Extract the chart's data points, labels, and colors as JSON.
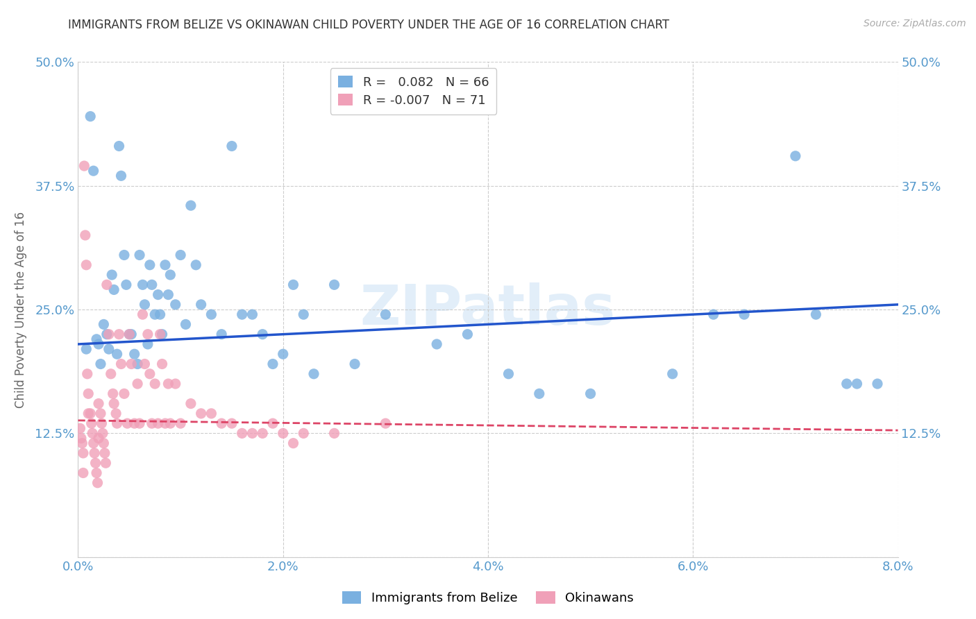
{
  "title": "IMMIGRANTS FROM BELIZE VS OKINAWAN CHILD POVERTY UNDER THE AGE OF 16 CORRELATION CHART",
  "source": "Source: ZipAtlas.com",
  "ylabel": "Child Poverty Under the Age of 16",
  "xlim": [
    0.0,
    0.08
  ],
  "ylim": [
    0.0,
    0.5
  ],
  "blue_R": 0.082,
  "blue_N": 66,
  "pink_R": -0.007,
  "pink_N": 71,
  "blue_color": "#7ab0e0",
  "pink_color": "#f0a0b8",
  "blue_line_color": "#2255cc",
  "pink_line_color": "#dd4466",
  "grid_color": "#cccccc",
  "background_color": "#ffffff",
  "title_color": "#333333",
  "tick_label_color": "#5599cc",
  "legend_label_blue": "Immigrants from Belize",
  "legend_label_pink": "Okinawans",
  "blue_scatter_x": [
    0.0008,
    0.0012,
    0.0015,
    0.0018,
    0.002,
    0.0022,
    0.0025,
    0.0028,
    0.003,
    0.0033,
    0.0035,
    0.0038,
    0.004,
    0.0042,
    0.0045,
    0.0047,
    0.005,
    0.0052,
    0.0055,
    0.0058,
    0.006,
    0.0063,
    0.0065,
    0.0068,
    0.007,
    0.0072,
    0.0075,
    0.0078,
    0.008,
    0.0082,
    0.0085,
    0.0088,
    0.009,
    0.0095,
    0.01,
    0.0105,
    0.011,
    0.0115,
    0.012,
    0.013,
    0.014,
    0.015,
    0.016,
    0.017,
    0.018,
    0.019,
    0.02,
    0.021,
    0.022,
    0.023,
    0.025,
    0.027,
    0.03,
    0.035,
    0.038,
    0.042,
    0.045,
    0.05,
    0.058,
    0.062,
    0.065,
    0.07,
    0.072,
    0.075,
    0.076,
    0.078
  ],
  "blue_scatter_y": [
    0.21,
    0.445,
    0.39,
    0.22,
    0.215,
    0.195,
    0.235,
    0.225,
    0.21,
    0.285,
    0.27,
    0.205,
    0.415,
    0.385,
    0.305,
    0.275,
    0.225,
    0.225,
    0.205,
    0.195,
    0.305,
    0.275,
    0.255,
    0.215,
    0.295,
    0.275,
    0.245,
    0.265,
    0.245,
    0.225,
    0.295,
    0.265,
    0.285,
    0.255,
    0.305,
    0.235,
    0.355,
    0.295,
    0.255,
    0.245,
    0.225,
    0.415,
    0.245,
    0.245,
    0.225,
    0.195,
    0.205,
    0.275,
    0.245,
    0.185,
    0.275,
    0.195,
    0.245,
    0.215,
    0.225,
    0.185,
    0.165,
    0.165,
    0.185,
    0.245,
    0.245,
    0.405,
    0.245,
    0.175,
    0.175,
    0.175
  ],
  "pink_scatter_x": [
    0.0002,
    0.0003,
    0.0004,
    0.0005,
    0.0005,
    0.0006,
    0.0007,
    0.0008,
    0.0009,
    0.001,
    0.001,
    0.0012,
    0.0013,
    0.0014,
    0.0015,
    0.0016,
    0.0017,
    0.0018,
    0.0019,
    0.002,
    0.002,
    0.0022,
    0.0023,
    0.0024,
    0.0025,
    0.0026,
    0.0027,
    0.0028,
    0.003,
    0.0032,
    0.0034,
    0.0035,
    0.0037,
    0.0038,
    0.004,
    0.0042,
    0.0045,
    0.0048,
    0.005,
    0.0052,
    0.0055,
    0.0058,
    0.006,
    0.0063,
    0.0065,
    0.0068,
    0.007,
    0.0072,
    0.0075,
    0.0078,
    0.008,
    0.0082,
    0.0085,
    0.0088,
    0.009,
    0.0095,
    0.01,
    0.011,
    0.012,
    0.013,
    0.014,
    0.015,
    0.016,
    0.017,
    0.018,
    0.019,
    0.02,
    0.021,
    0.022,
    0.025,
    0.03
  ],
  "pink_scatter_y": [
    0.13,
    0.12,
    0.115,
    0.105,
    0.085,
    0.395,
    0.325,
    0.295,
    0.185,
    0.165,
    0.145,
    0.145,
    0.135,
    0.125,
    0.115,
    0.105,
    0.095,
    0.085,
    0.075,
    0.155,
    0.12,
    0.145,
    0.135,
    0.125,
    0.115,
    0.105,
    0.095,
    0.275,
    0.225,
    0.185,
    0.165,
    0.155,
    0.145,
    0.135,
    0.225,
    0.195,
    0.165,
    0.135,
    0.225,
    0.195,
    0.135,
    0.175,
    0.135,
    0.245,
    0.195,
    0.225,
    0.185,
    0.135,
    0.175,
    0.135,
    0.225,
    0.195,
    0.135,
    0.175,
    0.135,
    0.175,
    0.135,
    0.155,
    0.145,
    0.145,
    0.135,
    0.135,
    0.125,
    0.125,
    0.125,
    0.135,
    0.125,
    0.115,
    0.125,
    0.125,
    0.135
  ]
}
